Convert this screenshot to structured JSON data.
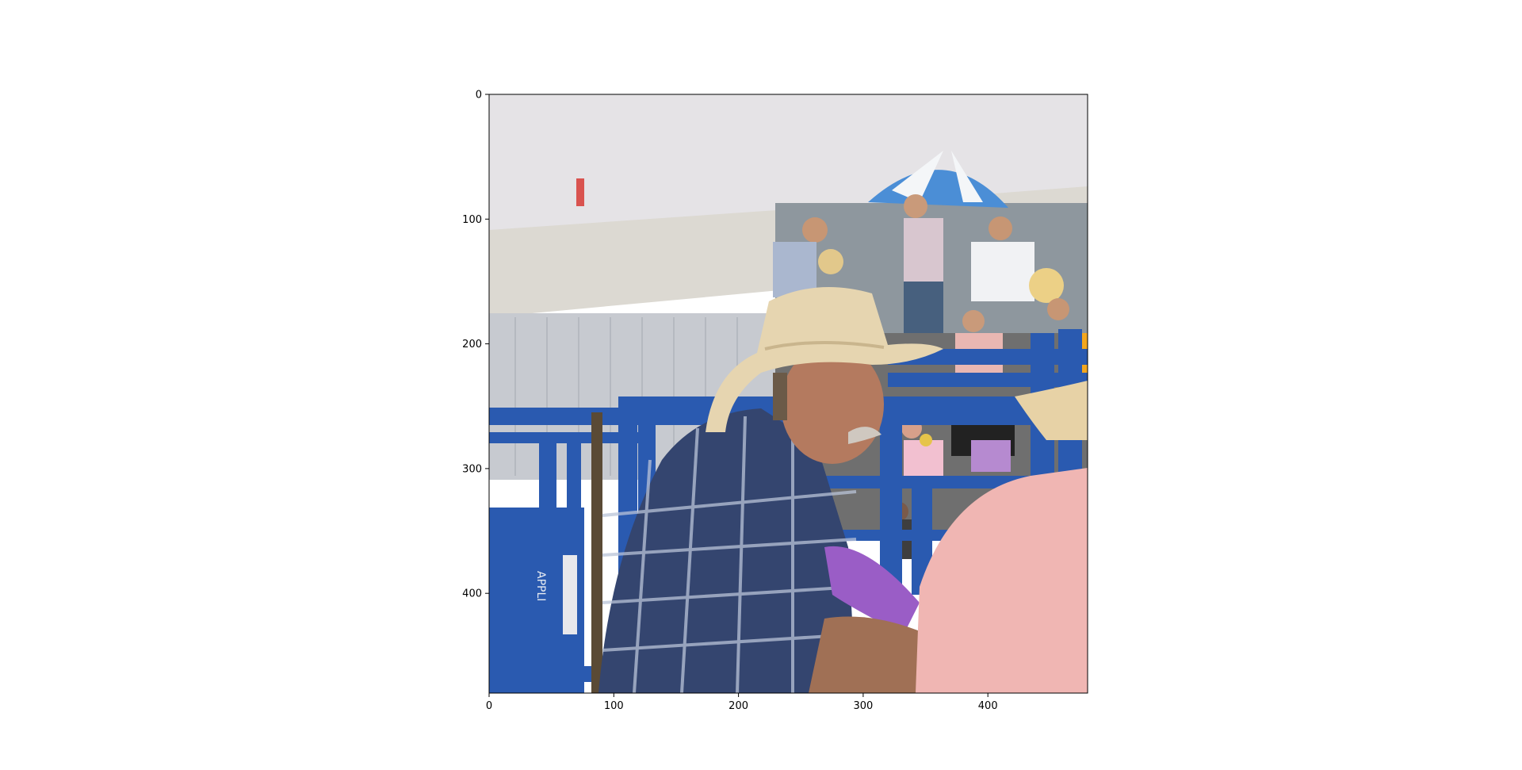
{
  "figure": {
    "type": "image_with_axes",
    "image_description_name": "rodeo-photo",
    "x_ticks": [
      "0",
      "100",
      "200",
      "300",
      "400"
    ],
    "y_ticks": [
      "0",
      "100",
      "200",
      "300",
      "400"
    ],
    "x_range": [
      0,
      480
    ],
    "y_range": [
      0,
      480
    ],
    "colors": {
      "sky": "#e4e2e5",
      "roof": "#dedbd5",
      "building": "#c9ccd1",
      "fence_blue": "#2a5ab0",
      "shirt_plaid": "#34456f",
      "hat": "#e6d5b0",
      "pink_shirt": "#f0b6b3",
      "umbrella": "#4b8ed6"
    }
  }
}
